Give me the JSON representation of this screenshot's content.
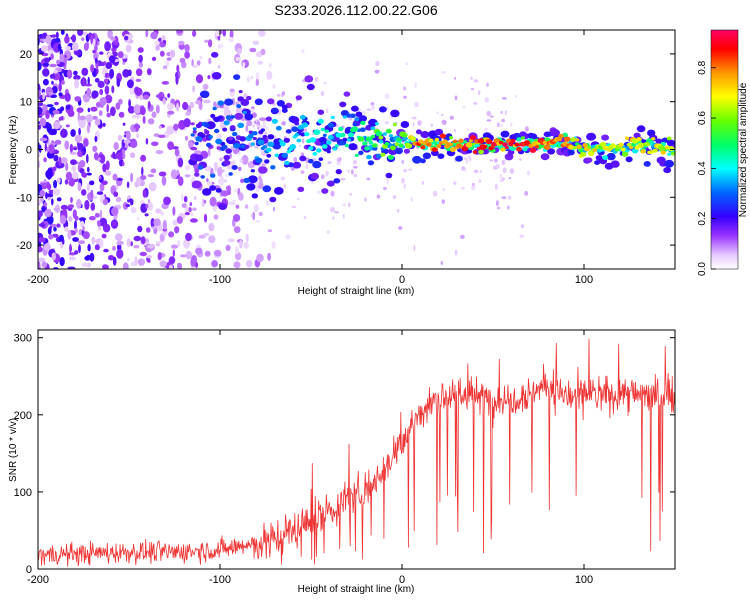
{
  "figure": {
    "title": "S233.2026.112.00.22.G06"
  },
  "chart_data": [
    {
      "type": "heatmap",
      "title": "S233.2026.112.00.22.G06",
      "xlabel": "Height of straight line (km)",
      "ylabel": "Frequency (Hz)",
      "xlim": [
        -200,
        150
      ],
      "ylim": [
        -25,
        25
      ],
      "xticks": [
        -200,
        -100,
        0,
        100
      ],
      "yticks": [
        -20,
        -10,
        0,
        10,
        20
      ],
      "colorbar": {
        "label": "Normalized spectral amplitude",
        "range": [
          0,
          0.95
        ],
        "ticks": [
          0.0,
          0.2,
          0.4,
          0.6,
          0.8
        ],
        "colormap": [
          "#ffffff",
          "#e6c8ff",
          "#9933ff",
          "#3300ff",
          "#0066ff",
          "#00ffff",
          "#00ff66",
          "#66ff00",
          "#ffff00",
          "#ff9900",
          "#ff0000",
          "#ff0066"
        ]
      },
      "ridge": {
        "x": [
          -110,
          -80,
          -60,
          -40,
          -30,
          -20,
          -10,
          0,
          10,
          30,
          60,
          80,
          90,
          100,
          110,
          130,
          150
        ],
        "frequency": [
          2,
          2,
          1,
          3,
          4,
          2,
          1,
          2,
          1,
          1,
          1,
          1,
          2,
          0,
          0,
          1,
          0
        ],
        "amplitude": [
          0.3,
          0.35,
          0.4,
          0.45,
          0.45,
          0.55,
          0.6,
          0.65,
          0.85,
          0.9,
          0.9,
          0.88,
          0.8,
          0.75,
          0.7,
          0.72,
          0.7
        ]
      },
      "noise": {
        "x_range": [
          -200,
          -80
        ],
        "amplitude": [
          0.05,
          0.3
        ]
      }
    },
    {
      "type": "line",
      "xlabel": "Height of straight line (km)",
      "ylabel": "SNR (10 * v/v)",
      "xlim": [
        -200,
        150
      ],
      "ylim": [
        0,
        310
      ],
      "xticks": [
        -200,
        -100,
        0,
        100
      ],
      "yticks": [
        0,
        100,
        200,
        300
      ],
      "color": "#ee3333",
      "series": [
        {
          "x": [
            -200,
            -175,
            -150,
            -125,
            -100,
            -80,
            -60,
            -40,
            -20,
            -10,
            0,
            10,
            20,
            30,
            50,
            60,
            70,
            80,
            90,
            100,
            120,
            150
          ],
          "values": [
            18,
            20,
            22,
            22,
            25,
            32,
            50,
            75,
            105,
            130,
            165,
            200,
            225,
            228,
            220,
            222,
            228,
            240,
            225,
            225,
            228,
            225
          ]
        }
      ]
    }
  ]
}
